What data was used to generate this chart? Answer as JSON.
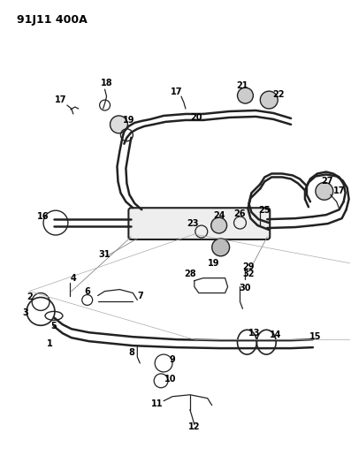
{
  "title": "91J11 400A",
  "bg_color": "#ffffff",
  "line_color": "#222222",
  "text_color": "#000000",
  "figsize": [
    3.97,
    5.33
  ],
  "dpi": 100
}
